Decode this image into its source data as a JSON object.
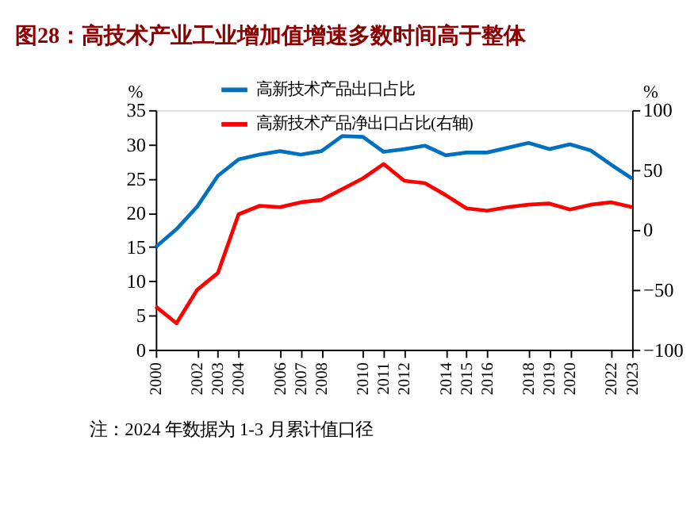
{
  "chart_data": {
    "type": "line",
    "title": "图28：高技术产业工业增加值增速多数时间高于整体",
    "categories": [
      "2000",
      null,
      "2002",
      "2003",
      "2004",
      null,
      "2006",
      "2007",
      "2008",
      null,
      "2010",
      "2011",
      "2012",
      null,
      "2014",
      "2015",
      "2016",
      null,
      "2018",
      "2019",
      "2020",
      null,
      "2022",
      "2023"
    ],
    "series": [
      {
        "name": "高新技术产品出口占比",
        "color": "#0070c0",
        "values": [
          15,
          17.6,
          20.9,
          25.4,
          27.8,
          28.5,
          29,
          28.5,
          29,
          31.2,
          31.1,
          28.9,
          29.3,
          29.8,
          28.4,
          28.8,
          28.8,
          29.5,
          30.2,
          29.3,
          30,
          29.1,
          27,
          25
        ]
      },
      {
        "name": "高新技术产品净出口占比(右轴)",
        "color": "#ff0000",
        "axis": "y2",
        "values": [
          -64,
          -78,
          -50,
          -36,
          13,
          20,
          19,
          23,
          25,
          34,
          43,
          55,
          41,
          39,
          29,
          18,
          16,
          19,
          21,
          22,
          17,
          21,
          23,
          19
        ]
      }
    ],
    "ylabel": "%",
    "y2label": "%",
    "ylim": [
      0,
      35
    ],
    "yticks": [
      0,
      5,
      10,
      15,
      20,
      25,
      30,
      35
    ],
    "y2lim": [
      -100,
      100
    ],
    "y2ticks": [
      -100,
      -50,
      0,
      50,
      100
    ],
    "legend": "top left",
    "grid": false,
    "marker": "none",
    "line_style": "solid",
    "annotations": [
      "注：2024 年数据为 1-3 月累计值口径"
    ]
  }
}
